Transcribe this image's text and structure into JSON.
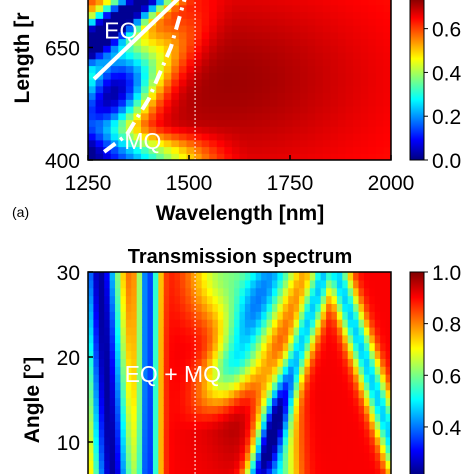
{
  "colors": {
    "jet": [
      "#00007f",
      "#0000ff",
      "#007fff",
      "#00ffff",
      "#7fff7f",
      "#ffff00",
      "#ff7f00",
      "#ff0000",
      "#7f0000"
    ],
    "annotation": "#ffffff",
    "axis": "#000000"
  },
  "chart_data": [
    {
      "type": "heatmap",
      "panel_label": "(a)",
      "title": "",
      "xlabel": "Wavelength [nm]",
      "ylabel": "Length [nm]",
      "ylabel_visible": "Length [r",
      "xlim": [
        1250,
        2000
      ],
      "ylim_visible": [
        400,
        760
      ],
      "x_ticks": [
        {
          "value": 1250,
          "label": "1250"
        },
        {
          "value": 1500,
          "label": "1500"
        },
        {
          "value": 1750,
          "label": "1750"
        },
        {
          "value": 2000,
          "label": "2000"
        }
      ],
      "y_ticks": [
        {
          "value": 400,
          "label": "400"
        },
        {
          "value": 650,
          "label": "650"
        }
      ],
      "colorbar": {
        "range": [
          0.0,
          1.0
        ],
        "ticks": [
          {
            "value": 0.0,
            "label": "0.0"
          },
          {
            "value": 0.2,
            "label": "0.2"
          },
          {
            "value": 0.4,
            "label": "0.4"
          },
          {
            "value": 0.6,
            "label": "0.6"
          }
        ]
      },
      "marker_line_x": 1515,
      "annotations": [
        {
          "text": "EQ",
          "x": 1290,
          "y": 670
        },
        {
          "text": "MQ",
          "x": 1340,
          "y": 425
        }
      ],
      "guide_lines": [
        {
          "name": "EQ",
          "style": "solid",
          "points": [
            [
              1265,
              580
            ],
            [
              1475,
              760
            ]
          ]
        },
        {
          "name": "MQ",
          "style": "dash-dot",
          "points": [
            [
              1290,
              418
            ],
            [
              1345,
              455
            ],
            [
              1400,
              535
            ],
            [
              1455,
              650
            ],
            [
              1490,
              760
            ]
          ]
        }
      ]
    },
    {
      "type": "heatmap",
      "title": "Transmission spectrum",
      "xlabel": "",
      "ylabel": "Angle [°]",
      "xlim": [
        1250,
        2000
      ],
      "ylim_visible": [
        6,
        30
      ],
      "y_ticks": [
        {
          "value": 10,
          "label": "10"
        },
        {
          "value": 20,
          "label": "20"
        },
        {
          "value": 30,
          "label": "30"
        }
      ],
      "colorbar": {
        "range": [
          0.0,
          1.0
        ],
        "ticks": [
          {
            "value": 0.4,
            "label": "0.4"
          },
          {
            "value": 0.6,
            "label": "0.6"
          },
          {
            "value": 0.8,
            "label": "0.8"
          },
          {
            "value": 1.0,
            "label": "1.0"
          }
        ]
      },
      "marker_line_x": 1515,
      "annotations": [
        {
          "text": "EQ + MQ",
          "x": 1460,
          "y": 18
        }
      ]
    }
  ]
}
